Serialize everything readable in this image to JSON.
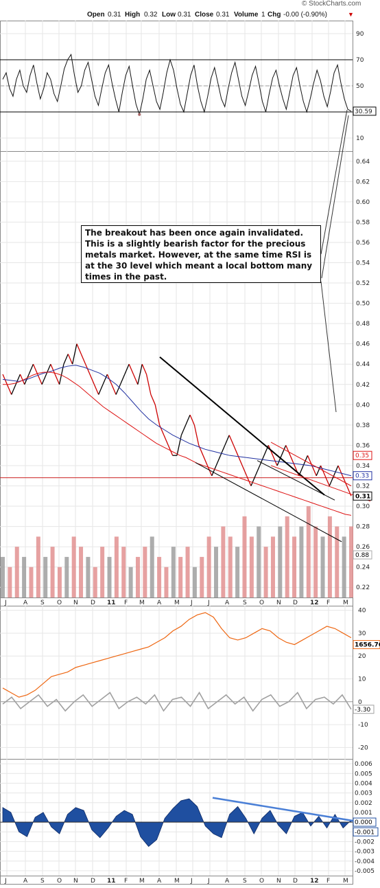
{
  "header": {
    "copyright": "© StockCharts.com",
    "open_label": "Open",
    "open": "0.31",
    "high_label": "High",
    "high": "0.32",
    "low_label": "Low",
    "low": "0.31",
    "close_label": "Close",
    "close": "0.31",
    "volume_label": "Volume",
    "volume": "1",
    "chg_label": "Chg",
    "chg": "-0.00 (-0.90%)"
  },
  "annotation": "The breakout has been once again invalidated. This is a slightly bearish factor for the precious metals market. However, at the same time RSI is at the 30 level which meant a local bottom many times in the past.",
  "colors": {
    "price_up": "#000000",
    "price_down": "#cc0000",
    "ma50": "#1f2fa0",
    "ma200": "#dd1111",
    "volume_up": "#999999",
    "volume_down": "#e08a8a",
    "gold": "#ee6611",
    "momentum": "#a0a0a0",
    "macd_hist": "#1f4fa0",
    "trendline_blue": "#4a7fd6"
  },
  "chart_data": [
    {
      "type": "line",
      "panel": "rsi",
      "y_ticks": [
        "90",
        "70",
        "50",
        "30",
        "10"
      ],
      "ylim": [
        0,
        100
      ],
      "levels": [
        70,
        30
      ],
      "last_value_label": "30.59",
      "series": [
        {
          "values": [
            55,
            60,
            48,
            42,
            55,
            62,
            50,
            45,
            58,
            66,
            52,
            40,
            48,
            60,
            55,
            44,
            38,
            50,
            63,
            70,
            74,
            58,
            45,
            50,
            62,
            68,
            55,
            42,
            35,
            48,
            60,
            66,
            52,
            40,
            30,
            45,
            58,
            65,
            50,
            36,
            28,
            40,
            55,
            62,
            50,
            38,
            32,
            45,
            60,
            70,
            62,
            48,
            36,
            30,
            44,
            58,
            66,
            50,
            38,
            30,
            42,
            56,
            64,
            52,
            40,
            34,
            48,
            60,
            68,
            55,
            42,
            35,
            46,
            58,
            65,
            52,
            38,
            30,
            44,
            56,
            62,
            50,
            40,
            32,
            45,
            58,
            64,
            50,
            38,
            30,
            40,
            52,
            62,
            54,
            42,
            34,
            46,
            60,
            66,
            52,
            40,
            32,
            30.59
          ]
        }
      ]
    },
    {
      "type": "line",
      "panel": "price",
      "y_ticks": [
        "0.64",
        "0.62",
        "0.60",
        "0.58",
        "0.56",
        "0.54",
        "0.52",
        "0.50",
        "0.48",
        "0.46",
        "0.44",
        "0.42",
        "0.40",
        "0.38",
        "0.36",
        "0.34",
        "0.32",
        "0.30",
        "0.28",
        "0.26",
        "0.24",
        "0.22"
      ],
      "ylim": [
        0.21,
        0.65
      ],
      "horizontal_line": 0.328,
      "series": [
        {
          "values": [
            0.43,
            0.42,
            0.41,
            0.42,
            0.43,
            0.42,
            0.43,
            0.44,
            0.43,
            0.42,
            0.43,
            0.44,
            0.43,
            0.42,
            0.44,
            0.45,
            0.44,
            0.46,
            0.45,
            0.44,
            0.43,
            0.42,
            0.41,
            0.42,
            0.43,
            0.42,
            0.41,
            0.42,
            0.43,
            0.44,
            0.43,
            0.42,
            0.44,
            0.43,
            0.41,
            0.4,
            0.38,
            0.37,
            0.36,
            0.35,
            0.35,
            0.37,
            0.38,
            0.39,
            0.38,
            0.36,
            0.35,
            0.34,
            0.33,
            0.34,
            0.35,
            0.36,
            0.37,
            0.36,
            0.35,
            0.34,
            0.33,
            0.32,
            0.33,
            0.34,
            0.35,
            0.36,
            0.35,
            0.34,
            0.35,
            0.36,
            0.35,
            0.34,
            0.33,
            0.34,
            0.35,
            0.34,
            0.33,
            0.34,
            0.33,
            0.32,
            0.33,
            0.34,
            0.33,
            0.32,
            0.31
          ]
        },
        {
          "name": "",
          "values": [
            0.425,
            0.424,
            0.423,
            0.425,
            0.428,
            0.431,
            0.433,
            0.436,
            0.438,
            0.439,
            0.437,
            0.434,
            0.431,
            0.426,
            0.42,
            0.412,
            0.403,
            0.394,
            0.386,
            0.38,
            0.375,
            0.37,
            0.366,
            0.362,
            0.359,
            0.356,
            0.354,
            0.352,
            0.35,
            0.349,
            0.348,
            0.347,
            0.346,
            0.345,
            0.344,
            0.343,
            0.342,
            0.341,
            0.34,
            0.338,
            0.336,
            0.334,
            0.332,
            0.33
          ]
        },
        {
          "name": "",
          "values": [
            0.42,
            0.42,
            0.421,
            0.423,
            0.426,
            0.429,
            0.431,
            0.432,
            0.432,
            0.431,
            0.429,
            0.426,
            0.422,
            0.418,
            0.413,
            0.408,
            0.403,
            0.398,
            0.394,
            0.39,
            0.386,
            0.382,
            0.378,
            0.374,
            0.37,
            0.366,
            0.362,
            0.359,
            0.356,
            0.353,
            0.35,
            0.348,
            0.345,
            0.342,
            0.34,
            0.338,
            0.336,
            0.334,
            0.332,
            0.33,
            0.328,
            0.326,
            0.324,
            0.322,
            0.32,
            0.318,
            0.316,
            0.314,
            0.312,
            0.31,
            0.308,
            0.306,
            0.304,
            0.302,
            0.3,
            0.298,
            0.296,
            0.294,
            0.292,
            0.291
          ]
        }
      ],
      "last_value_labels": [
        "0.35",
        "0.33",
        "0.31"
      ]
    },
    {
      "type": "bar",
      "panel": "volume",
      "values": [
        0.25,
        0.24,
        0.26,
        0.25,
        0.24,
        0.27,
        0.25,
        0.26,
        0.24,
        0.25,
        0.27,
        0.26,
        0.25,
        0.24,
        0.26,
        0.25,
        0.27,
        0.26,
        0.24,
        0.25,
        0.26,
        0.27,
        0.25,
        0.24,
        0.26,
        0.25,
        0.26,
        0.24,
        0.25,
        0.27,
        0.26,
        0.28,
        0.27,
        0.26,
        0.29,
        0.27,
        0.28,
        0.26,
        0.27,
        0.28,
        0.29,
        0.27,
        0.28,
        0.3,
        0.28,
        0.27,
        0.29,
        0.28,
        0.27,
        0.28
      ]
    },
    {
      "type": "line",
      "panel": "spx",
      "y_ticks": [
        "40",
        "30",
        "20",
        "10",
        "0",
        "-10",
        "-20"
      ],
      "ylim": [
        -25,
        42
      ],
      "last_value_labels": [
        "1656.76",
        "-3.30"
      ],
      "series": [
        {
          "values": [
            6,
            4,
            2,
            3,
            5,
            8,
            11,
            12,
            13,
            15,
            16,
            17,
            18,
            19,
            20,
            21,
            22,
            23,
            24,
            26,
            28,
            31,
            33,
            36,
            38,
            39,
            37,
            32,
            28,
            27,
            28,
            30,
            32,
            31,
            28,
            26,
            25,
            27,
            29,
            31,
            33,
            32,
            30,
            28
          ]
        },
        {
          "values": [
            -1,
            2,
            -3,
            0,
            3,
            -2,
            1,
            -4,
            0,
            3,
            -2,
            1,
            4,
            -3,
            0,
            2,
            -1,
            3,
            -4,
            1,
            2,
            -2,
            4,
            -3,
            0,
            3,
            -1,
            2,
            -4,
            1,
            3,
            -2,
            0,
            4,
            -3,
            1,
            2,
            -1,
            3,
            -3.3
          ]
        }
      ]
    },
    {
      "type": "bar",
      "panel": "macd_hist",
      "y_ticks": [
        "0.006",
        "0.005",
        "0.004",
        "0.003",
        "0.002",
        "0.001",
        "0.000",
        "-0.001",
        "-0.002",
        "-0.003",
        "-0.004",
        "-0.005"
      ],
      "ylim": [
        -0.0055,
        0.0065
      ],
      "last_value_labels": [
        "0.000",
        "-0.001"
      ],
      "values": [
        0.0015,
        0.001,
        -0.001,
        -0.0015,
        0.0005,
        0.001,
        -0.0005,
        -0.0012,
        0.0008,
        0.0015,
        0.0012,
        -0.0008,
        -0.0016,
        -0.0006,
        0.0006,
        0.0012,
        0.0008,
        -0.0015,
        -0.0025,
        -0.0018,
        0.0004,
        0.0014,
        0.0022,
        0.0024,
        0.0016,
        -0.0004,
        -0.0012,
        -0.0016,
        0.0008,
        0.0016,
        0.0004,
        -0.0012,
        0.0004,
        0.0012,
        -0.0003,
        -0.0012,
        0.0006,
        0.001,
        -0.0004,
        0.0006,
        -0.0006,
        0.0008,
        -0.0006,
        0.0002
      ]
    }
  ],
  "x_axis": {
    "months": [
      "J",
      "A",
      "S",
      "O",
      "N",
      "D",
      "11",
      "F",
      "M",
      "A",
      "M",
      "J",
      "J",
      "A",
      "S",
      "O",
      "N",
      "D",
      "12",
      "F",
      "M"
    ]
  }
}
